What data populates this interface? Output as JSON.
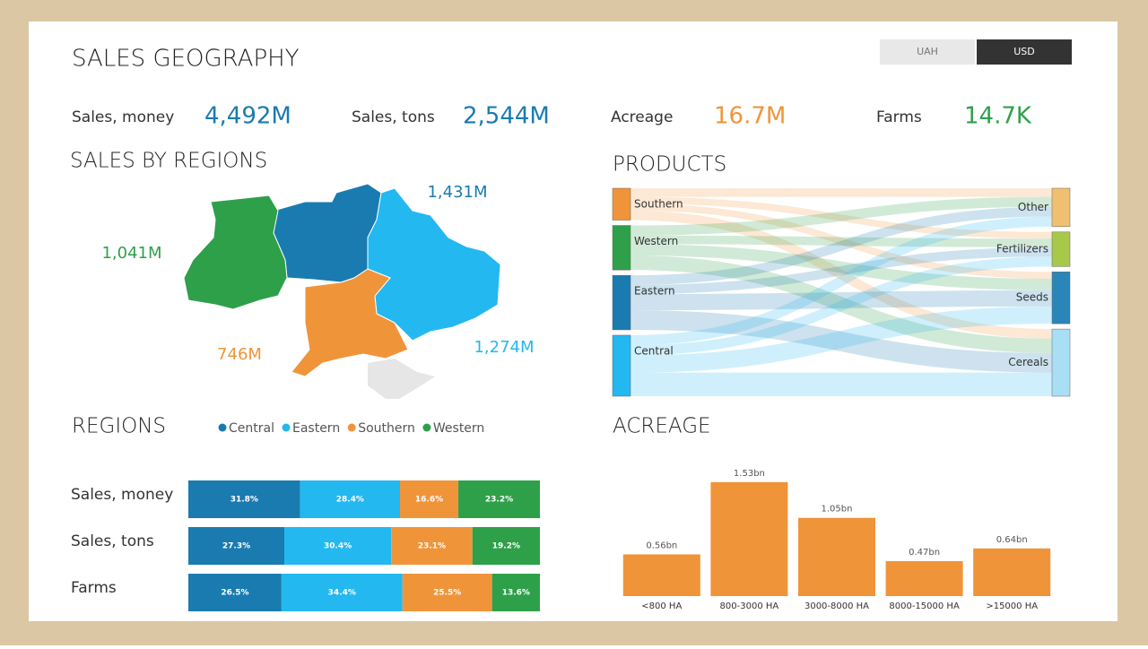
{
  "header": {
    "title": "SALES GEOGRAPHY",
    "currencies": [
      "UAH",
      "USD"
    ],
    "active_currency": 1
  },
  "kpis": [
    {
      "label": "Sales, money",
      "value": "4,492M",
      "color": "#1a7bb0"
    },
    {
      "label": "Sales, tons",
      "value": "2,544M",
      "color": "#1a7bb0"
    },
    {
      "label": "Acreage",
      "value": "16.7M",
      "color": "#f0943a"
    },
    {
      "label": "Farms",
      "value": "14.7K",
      "color": "#2ea04a"
    }
  ],
  "chart_data": [
    {
      "type": "map",
      "title": "SALES BY REGIONS",
      "values": [
        1431,
        1274,
        746,
        1041
      ],
      "value_labels": [
        "1,431M",
        "1,274M",
        "746M",
        "1,041M"
      ],
      "colors": [
        "#1a7bb0",
        "#23b8f0",
        "#f0943a",
        "#2ea04a"
      ]
    },
    {
      "type": "sankey",
      "title": "PRODUCTS",
      "sources": [
        "Southern",
        "Western",
        "Eastern",
        "Central"
      ],
      "source_colors": [
        "#f0943a",
        "#2ea04a",
        "#1a7bb0",
        "#23b8f0"
      ],
      "targets": [
        "Other",
        "Fertilizers",
        "Seeds",
        "Cereals"
      ],
      "target_colors": [
        "#f0c070",
        "#a8c84a",
        "#2a86b8",
        "#a8dff5"
      ],
      "flows": [
        [
          4.5,
          3.5,
          3.6,
          5.0
        ],
        [
          5.2,
          4.5,
          6.0,
          7.5
        ],
        [
          5.0,
          4.8,
          8.4,
          10.2
        ],
        [
          5.3,
          5.2,
          9.0,
          12.3
        ]
      ]
    },
    {
      "type": "stacked_bar",
      "title": "REGIONS",
      "categories": [
        "Sales, money",
        "Sales, tons",
        "Farms"
      ],
      "xlim": [
        0,
        100
      ],
      "series": [
        {
          "name": "Central",
          "color": "#1a7bb0",
          "values": [
            31.8,
            27.3,
            26.5
          ],
          "value_labels": [
            "31.8%",
            "27.3%",
            "26.5%"
          ]
        },
        {
          "name": "Eastern",
          "color": "#23b8f0",
          "values": [
            28.4,
            30.4,
            34.4
          ],
          "value_labels": [
            "28.4%",
            "30.4%",
            "34.4%"
          ]
        },
        {
          "name": "Southern",
          "color": "#f0943a",
          "values": [
            16.6,
            23.1,
            25.5
          ],
          "value_labels": [
            "16.6%",
            "23.1%",
            "25.5%"
          ]
        },
        {
          "name": "Western",
          "color": "#2ea04a",
          "values": [
            23.2,
            19.2,
            13.6
          ],
          "value_labels": [
            "23.2%",
            "19.2%",
            "13.6%"
          ]
        }
      ]
    },
    {
      "type": "bar",
      "title": "ACREAGE",
      "categories": [
        "<800 HA",
        "800-3000 HA",
        "3000-8000 HA",
        "8000-15000 HA",
        ">15000 HA"
      ],
      "values": [
        0.56,
        1.53,
        1.05,
        0.47,
        0.64
      ],
      "value_labels": [
        "0.56bn",
        "1.53bn",
        "1.05bn",
        "0.47bn",
        "0.64bn"
      ],
      "color": "#f0943a",
      "ylim": [
        0,
        1.6
      ]
    }
  ]
}
